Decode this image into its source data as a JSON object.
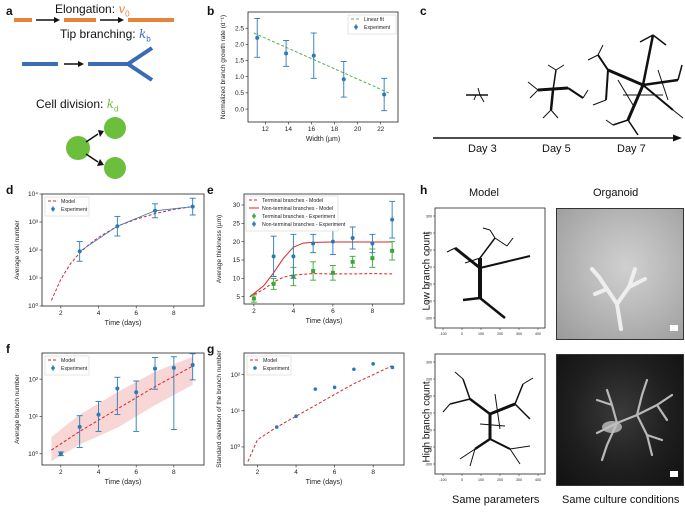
{
  "panels": {
    "a": {
      "letter": "a",
      "elongation": "Elongation: ",
      "elongation_sym": "v",
      "elongation_sub": "0",
      "tip": "Tip branching: ",
      "tip_sym": "k",
      "tip_sub": "b",
      "div": "Cell division: ",
      "div_sym": "k",
      "div_sub": "d",
      "colors": {
        "orange": "#e8833a",
        "blue": "#3a6bb5",
        "green": "#6cbf3c"
      }
    },
    "b": {
      "letter": "b"
    },
    "c": {
      "letter": "c",
      "days": [
        "Day 3",
        "Day 5",
        "Day 7"
      ]
    },
    "d": {
      "letter": "d"
    },
    "e": {
      "letter": "e"
    },
    "f": {
      "letter": "f"
    },
    "g": {
      "letter": "g"
    },
    "h": {
      "letter": "h",
      "col_model": "Model",
      "col_organoid": "Organoid",
      "row_low": "Low branch count",
      "row_high": "High branch count",
      "foot_model": "Same parameters",
      "foot_organoid": "Same culture conditions",
      "axis_ticks_x": [
        "-100",
        "0",
        "100",
        "200",
        "300",
        "400"
      ],
      "axis_ticks_y": [
        "300",
        "200",
        "100",
        "0",
        "-100",
        "-200",
        "-300"
      ]
    }
  },
  "chart_data": [
    {
      "id": "b",
      "type": "scatter",
      "ylabel": "Normalized branch growth rate (d⁻¹)",
      "xlabel": "Width (µm)",
      "xlim": [
        10.5,
        23.5
      ],
      "ylim": [
        -0.4,
        3.0
      ],
      "xticks": [
        12,
        14,
        16,
        18,
        20,
        22
      ],
      "yticks": [
        0.0,
        0.5,
        1.0,
        1.5,
        2.0,
        2.5
      ],
      "legend": [
        "Linear fit",
        "Experiment"
      ],
      "x": [
        11.3,
        13.8,
        16.2,
        18.8,
        22.3
      ],
      "y": [
        2.2,
        1.72,
        1.65,
        0.92,
        0.45
      ],
      "err": [
        0.6,
        0.4,
        0.7,
        0.55,
        0.5
      ],
      "fit": [
        [
          11,
          2.35
        ],
        [
          22.7,
          0.5
        ]
      ]
    },
    {
      "id": "d",
      "type": "line",
      "yscale": "log",
      "ylabel": "Average cell number",
      "xlabel": "Time (days)",
      "xlim": [
        1,
        9.6
      ],
      "ylim": [
        0,
        4
      ],
      "xticks": [
        2,
        4,
        6,
        8
      ],
      "ytick_labels": [
        "10⁰",
        "10¹",
        "10²",
        "10³",
        "10⁴"
      ],
      "legend": [
        "Model",
        "Experiment"
      ],
      "x": [
        3,
        5,
        7,
        9
      ],
      "y": [
        1.95,
        2.85,
        3.4,
        3.55
      ],
      "err": [
        0.35,
        0.35,
        0.25,
        0.3
      ],
      "model_x": [
        1.5,
        2,
        2.5,
        3,
        3.5,
        4,
        5,
        6,
        7,
        8,
        9
      ],
      "model_y": [
        0.2,
        0.95,
        1.5,
        1.9,
        2.2,
        2.45,
        2.85,
        3.1,
        3.3,
        3.45,
        3.55
      ]
    },
    {
      "id": "e",
      "type": "line",
      "ylabel": "Average thickness (µm)",
      "xlabel": "Time (days)",
      "xlim": [
        1.5,
        9.6
      ],
      "ylim": [
        3,
        33
      ],
      "xticks": [
        2,
        4,
        6,
        8
      ],
      "yticks": [
        5,
        10,
        15,
        20,
        25,
        30
      ],
      "legend": [
        "Terminal branches - Model",
        "Non-terminal branches - Model",
        "Terminal branches - Experiment",
        "Non-terminal branches - Experiment"
      ],
      "terminal_x": [
        2,
        3,
        4,
        5,
        6,
        7,
        8,
        9
      ],
      "terminal_y": [
        4.5,
        8.5,
        10.5,
        12,
        11.5,
        14.5,
        15.5,
        17.5
      ],
      "terminal_err": [
        1,
        1.5,
        2.5,
        2.5,
        2,
        1.5,
        2.5,
        2.5
      ],
      "nonterm_x": [
        3,
        4,
        5,
        6,
        7,
        8,
        9
      ],
      "nonterm_y": [
        16,
        16,
        19.5,
        20,
        21,
        19.5,
        26
      ],
      "nonterm_err": [
        5.5,
        6,
        2.5,
        3.5,
        3,
        2.5,
        5
      ],
      "model_term_x": [
        1.8,
        2.5,
        3,
        3.5,
        4,
        5,
        6,
        7,
        8,
        9
      ],
      "model_term_y": [
        5,
        7,
        9,
        10.3,
        10.9,
        11.3,
        11.2,
        11.2,
        11.3,
        11.2
      ],
      "model_non_x": [
        1.8,
        2.5,
        3,
        3.5,
        4,
        4.5,
        5,
        6,
        7,
        8,
        9
      ],
      "model_non_y": [
        5,
        8,
        11.5,
        15.5,
        18.5,
        19.6,
        19.8,
        19.9,
        19.9,
        19.9,
        19.9
      ]
    },
    {
      "id": "f",
      "type": "line",
      "yscale": "log",
      "ylabel": "Average branch number",
      "xlabel": "Time (days)",
      "xlim": [
        1,
        9.6
      ],
      "ylim": [
        -0.3,
        2.7
      ],
      "xticks": [
        2,
        4,
        6,
        8
      ],
      "ytick_labels": [
        "10⁰",
        "10¹",
        "10²"
      ],
      "legend": [
        "Model",
        "Experiment"
      ],
      "x": [
        2,
        3,
        4,
        5,
        6,
        7,
        8,
        9
      ],
      "y": [
        0,
        0.72,
        1.05,
        1.75,
        1.65,
        2.28,
        2.3,
        2.38
      ],
      "err_lo": [
        0.05,
        0.55,
        0.45,
        0.7,
        1.05,
        0.55,
        1.65,
        0.4
      ],
      "err_hi": [
        0.05,
        0.3,
        0.35,
        0.3,
        0.3,
        0.3,
        0.3,
        0.3
      ],
      "model_x": [
        1.5,
        3,
        5,
        7,
        9
      ],
      "model_y": [
        0.1,
        0.6,
        1.2,
        1.8,
        2.35
      ],
      "band_lo": [
        -0.2,
        0.25,
        0.7,
        1.3,
        1.85
      ],
      "band_hi": [
        0.45,
        1.05,
        1.65,
        2.2,
        2.6
      ]
    },
    {
      "id": "g",
      "type": "scatter",
      "yscale": "log",
      "ylabel": "Standard deviation of the branch number",
      "xlabel": "Time (days)",
      "xlim": [
        1.3,
        9.6
      ],
      "ylim": [
        -0.5,
        2.6
      ],
      "xticks": [
        2,
        4,
        6,
        8
      ],
      "ytick_labels": [
        "10⁰",
        "10¹",
        "10²"
      ],
      "legend": [
        "Model",
        "Experiment"
      ],
      "x": [
        3,
        4,
        5,
        6,
        7,
        8,
        9
      ],
      "y": [
        0.55,
        0.85,
        1.6,
        1.65,
        2.15,
        2.3,
        2.2
      ],
      "model_x": [
        1.5,
        2,
        3,
        4,
        5,
        6,
        7,
        8,
        9
      ],
      "model_y": [
        -0.4,
        0.2,
        0.55,
        0.85,
        1.15,
        1.45,
        1.75,
        2.0,
        2.25
      ]
    }
  ]
}
